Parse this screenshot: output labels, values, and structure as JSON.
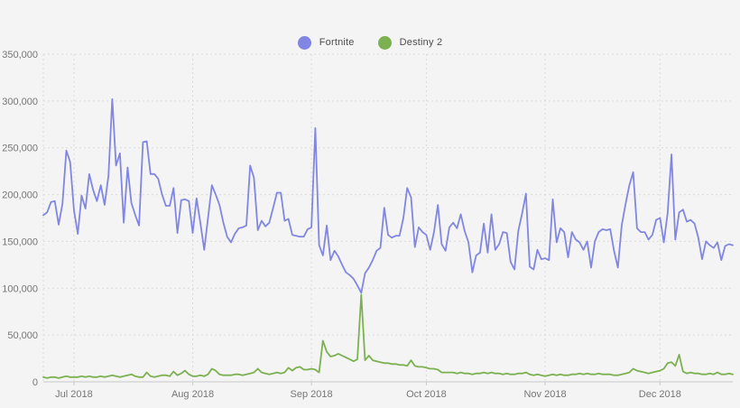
{
  "legend": {
    "items": [
      {
        "label": "Fortnite",
        "color": "#8186e2"
      },
      {
        "label": "Destiny 2",
        "color": "#7cb152"
      }
    ]
  },
  "colors": {
    "background": "#f4f4f4",
    "grid": "#dcdad8",
    "axis": "#c9c9c9",
    "tick_text": "#767676",
    "fortnite": "#8186e2",
    "destiny2": "#7cb152"
  },
  "chart_data": {
    "type": "line",
    "title": "",
    "xlabel": "",
    "ylabel": "",
    "grid": true,
    "legend_position": "top-center",
    "ylim": [
      0,
      350000
    ],
    "y_tick_step": 50000,
    "y_tick_labels": [
      "0",
      "50,000",
      "100,000",
      "150,000",
      "200,000",
      "250,000",
      "300,000",
      "350,000"
    ],
    "x_tick_labels": [
      "Jul 2018",
      "Aug 2018",
      "Sep 2018",
      "Oct 2018",
      "Nov 2018",
      "Dec 2018"
    ],
    "x_tick_day_index": [
      8,
      39,
      70,
      100,
      131,
      161
    ],
    "x_left_gridline_day_index": 0,
    "x_unit": "day",
    "series": [
      {
        "name": "Fortnite",
        "color": "#8186e2",
        "values": [
          178000,
          181000,
          192000,
          193000,
          168000,
          190000,
          247000,
          235000,
          183000,
          158000,
          199000,
          185000,
          222000,
          205000,
          193000,
          210000,
          189000,
          220000,
          302000,
          231000,
          244000,
          170000,
          229000,
          191000,
          178000,
          167000,
          256000,
          257000,
          222000,
          222000,
          217000,
          200000,
          188000,
          188000,
          207000,
          159000,
          194000,
          195000,
          193000,
          159000,
          196000,
          170000,
          141000,
          175000,
          210000,
          200000,
          189000,
          170000,
          155000,
          149000,
          158000,
          164000,
          165000,
          167000,
          231000,
          218000,
          162000,
          172000,
          166000,
          170000,
          186000,
          202000,
          202000,
          172000,
          174000,
          157000,
          156000,
          155000,
          155000,
          163000,
          165000,
          271000,
          146000,
          135000,
          167000,
          130000,
          140000,
          134000,
          125000,
          117000,
          114000,
          110000,
          103000,
          95000,
          116000,
          122000,
          130000,
          140000,
          143000,
          186000,
          157000,
          154000,
          156000,
          156000,
          175000,
          207000,
          197000,
          144000,
          165000,
          160000,
          157000,
          141000,
          160000,
          189000,
          147000,
          140000,
          165000,
          170000,
          164000,
          179000,
          161000,
          149000,
          117000,
          135000,
          138000,
          169000,
          138000,
          179000,
          141000,
          147000,
          160000,
          159000,
          128000,
          120000,
          161000,
          180000,
          201000,
          123000,
          120000,
          141000,
          131000,
          132000,
          130000,
          195000,
          149000,
          164000,
          160000,
          133000,
          160000,
          152000,
          149000,
          141000,
          150000,
          122000,
          150000,
          160000,
          163000,
          162000,
          163000,
          140000,
          122000,
          167000,
          190000,
          210000,
          224000,
          164000,
          160000,
          160000,
          152000,
          157000,
          173000,
          175000,
          149000,
          180000,
          243000,
          152000,
          181000,
          184000,
          171000,
          173000,
          169000,
          154000,
          131000,
          150000,
          146000,
          143000,
          149000,
          130000,
          145000,
          147000,
          146000
        ]
      },
      {
        "name": "Destiny 2",
        "color": "#7cb152",
        "values": [
          5000,
          4000,
          5000,
          5000,
          4000,
          5000,
          6000,
          5000,
          5000,
          5000,
          6000,
          5000,
          6000,
          5000,
          5000,
          6000,
          5000,
          6000,
          7000,
          6000,
          5000,
          6000,
          7000,
          8000,
          6000,
          5000,
          5000,
          10000,
          6000,
          5000,
          6000,
          7000,
          7000,
          6000,
          11000,
          7000,
          9000,
          12000,
          8000,
          6000,
          6000,
          7000,
          6000,
          8000,
          14000,
          12000,
          8000,
          7000,
          7000,
          7000,
          8000,
          8000,
          7000,
          8000,
          9000,
          10000,
          14000,
          10000,
          9000,
          8000,
          9000,
          10000,
          9000,
          10000,
          15000,
          12000,
          15000,
          16000,
          13000,
          13000,
          14000,
          13000,
          10000,
          44000,
          32000,
          27000,
          28000,
          30000,
          28000,
          26000,
          24000,
          22000,
          24000,
          93000,
          23000,
          28000,
          23000,
          22000,
          21000,
          20000,
          20000,
          19000,
          19000,
          18000,
          18000,
          17000,
          23000,
          17000,
          16000,
          16000,
          15000,
          14000,
          14000,
          13000,
          10000,
          10000,
          10000,
          10000,
          9000,
          10000,
          9000,
          9000,
          8000,
          9000,
          9000,
          10000,
          9000,
          10000,
          9000,
          9000,
          8000,
          9000,
          8000,
          8000,
          9000,
          9000,
          10000,
          8000,
          7000,
          8000,
          7000,
          6000,
          7000,
          8000,
          7000,
          8000,
          7000,
          7000,
          8000,
          8000,
          9000,
          8000,
          9000,
          8000,
          8000,
          9000,
          8000,
          8000,
          8000,
          7000,
          7000,
          8000,
          9000,
          10000,
          14000,
          12000,
          11000,
          10000,
          9000,
          10000,
          11000,
          12000,
          14000,
          20000,
          21000,
          17000,
          29000,
          11000,
          9000,
          10000,
          9000,
          9000,
          8000,
          8000,
          9000,
          8000,
          10000,
          8000,
          8000,
          9000,
          8000
        ]
      }
    ]
  }
}
